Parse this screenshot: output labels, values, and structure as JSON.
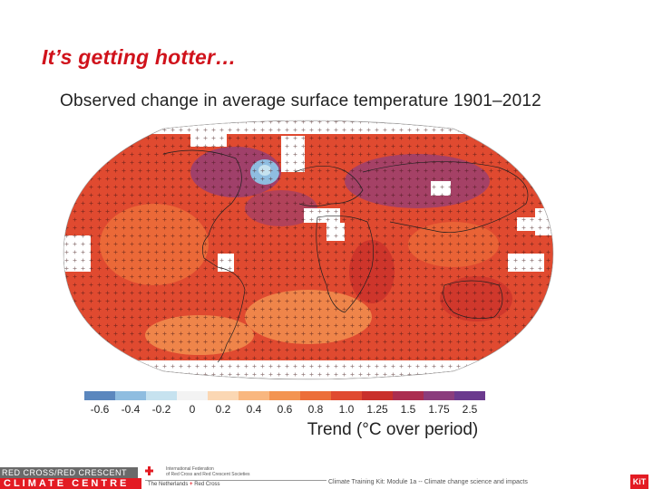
{
  "slide": {
    "title": "It’s getting hotter…"
  },
  "map": {
    "title": "Observed change in average surface temperature 1901–2012",
    "projection": "robinson",
    "grid_markers": "plus signs where trend is significant",
    "no_data_color": "#ffffff",
    "dominant_color": "#e04a30"
  },
  "colorbar": {
    "label": "Trend (°C over period)",
    "ticks": [
      "-0.6",
      "-0.4",
      "-0.2",
      "0",
      "0.2",
      "0.4",
      "0.6",
      "0.8",
      "1.0",
      "1.25",
      "1.5",
      "1.75",
      "2.5"
    ],
    "colors": [
      "#5b87be",
      "#8fbde0",
      "#c6e2ef",
      "#f3f3f3",
      "#fbd7b3",
      "#f9b77f",
      "#f39451",
      "#ec6e39",
      "#e04a30",
      "#c9302b",
      "#ab2d50",
      "#8b3d7d",
      "#6b3a8e"
    ]
  },
  "footer": {
    "rc_upper": "RED CROSS/RED CRESCENT",
    "rc_lower": "CLIMATE CENTRE",
    "ifrc_line1": "International Federation",
    "ifrc_line2": "of Red Cross and Red Crescent Societies",
    "nl_text": "The Netherlands",
    "nl_brand": "Red Cross",
    "kit_note": "Climate Training Kit: Module 1a -- Climate change science and impacts",
    "kit_logo": "KiT"
  }
}
